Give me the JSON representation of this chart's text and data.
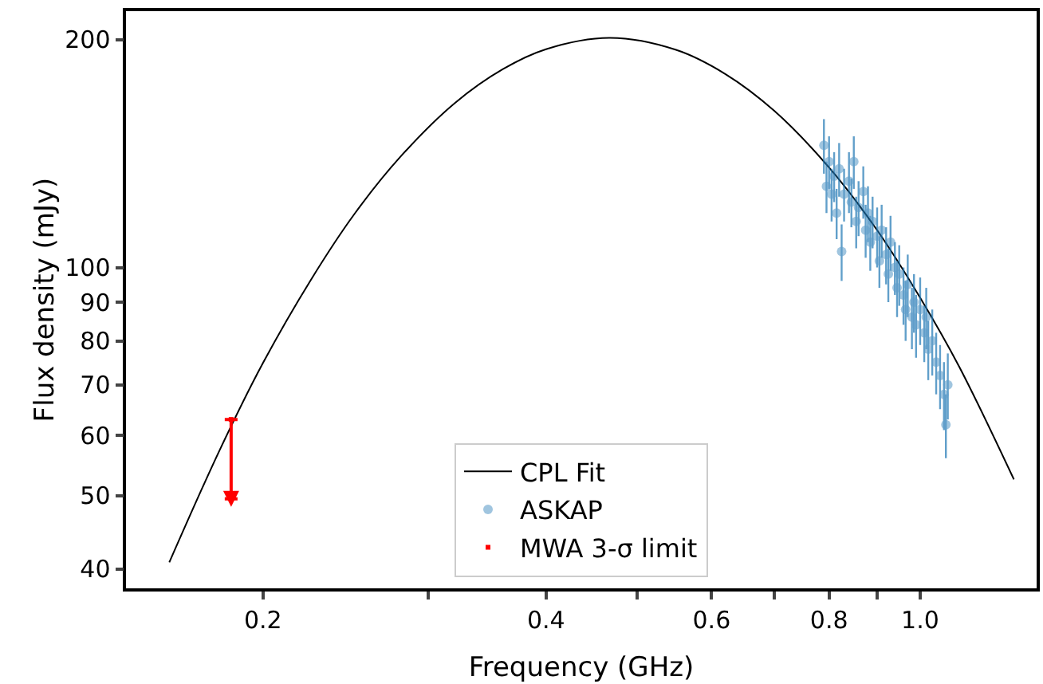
{
  "chart_data": {
    "type": "scatter",
    "xlabel": "Frequency (GHz)",
    "ylabel": "Flux density (mJy)",
    "log": "xy",
    "grid": false,
    "legend": "bottom",
    "xlim": [
      0.143,
      1.33
    ],
    "xticks": [
      0.2,
      {
        "value": 0.3,
        "label": null
      },
      0.4,
      {
        "value": 0.5,
        "label": null
      },
      0.6,
      {
        "value": 0.7,
        "label": null
      },
      0.8,
      {
        "value": 0.9,
        "label": null
      },
      {
        "value": 1.0,
        "label": "1.0"
      }
    ],
    "ylim": [
      37.7,
      218
    ],
    "yticks": [
      40,
      50,
      60,
      70,
      80,
      90,
      100,
      200
    ],
    "series": [
      {
        "name": "CPL Fit",
        "type": "line",
        "color": "#000000",
        "marker": "none",
        "line_style": "solid",
        "x": [
          0.159,
          0.18,
          0.2,
          0.225,
          0.25,
          0.28,
          0.32,
          0.36,
          0.4,
          0.468,
          0.55,
          0.62,
          0.7,
          0.8,
          0.9,
          1.0,
          1.1,
          1.258
        ],
        "values": [
          40.8,
          57.5,
          74.8,
          96.4,
          117.5,
          140,
          164.9,
          182.8,
          194.2,
          201,
          193.8,
          180.2,
          160.9,
          135.5,
          112,
          91.2,
          74,
          52.5
        ]
      },
      {
        "name": "ASKAP",
        "color": "#1f77b4",
        "marker": "circle",
        "x": [
          0.79,
          0.795,
          0.8,
          0.805,
          0.81,
          0.815,
          0.82,
          0.825,
          0.83,
          0.84,
          0.845,
          0.85,
          0.855,
          0.86,
          0.87,
          0.875,
          0.88,
          0.885,
          0.89,
          0.9,
          0.905,
          0.91,
          0.92,
          0.925,
          0.93,
          0.94,
          0.945,
          0.95,
          0.96,
          0.965,
          0.97,
          0.98,
          0.985,
          0.99,
          1.0,
          1.01,
          1.015,
          1.02,
          1.03,
          1.04,
          1.05,
          1.06,
          1.065,
          1.07
        ],
        "values": [
          145,
          128,
          138,
          125,
          132,
          118,
          135,
          105,
          125,
          130,
          122,
          138,
          115,
          120,
          126,
          112,
          118,
          108,
          115,
          110,
          102,
          112,
          104,
          98,
          108,
          100,
          94,
          98,
          92,
          88,
          95,
          86,
          90,
          84,
          88,
          82,
          86,
          78,
          80,
          75,
          72,
          68,
          62,
          70
        ],
        "errors": [
          12,
          10,
          11,
          10,
          10,
          9,
          11,
          9,
          10,
          12,
          9,
          11,
          9,
          10,
          10,
          9,
          10,
          9,
          9,
          10,
          8,
          9,
          9,
          8,
          9,
          8,
          8,
          9,
          8,
          8,
          9,
          8,
          8,
          8,
          9,
          7,
          8,
          7,
          8,
          7,
          7,
          7,
          6,
          7
        ]
      },
      {
        "name": "MWA 3-σ limit",
        "color": "#ff0000",
        "x": [
          0.185
        ],
        "values": [
          63
        ],
        "errors": [
          [
            49.5,
            63
          ]
        ]
      }
    ]
  }
}
